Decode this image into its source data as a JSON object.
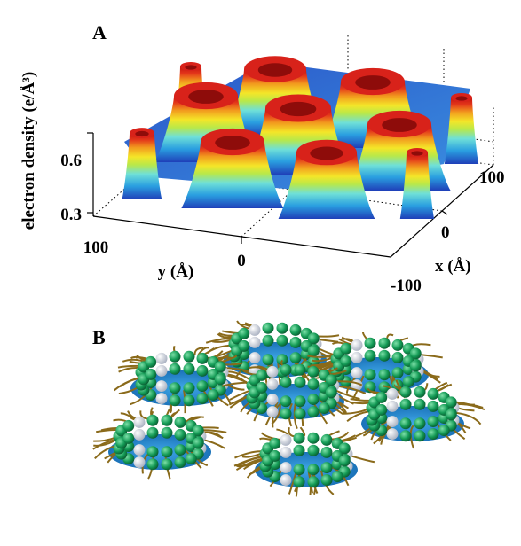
{
  "panels": [
    {
      "label": "A",
      "z_axis_title": "electron density (e/Å³)",
      "z_ticks": [
        0.6,
        0.3
      ],
      "y_axis_title": "y (Å)",
      "y_ticks": [
        100,
        0
      ],
      "x_axis_title": "x (Å)",
      "x_ticks": [
        100,
        0,
        -100
      ]
    },
    {
      "label": "B"
    }
  ]
}
